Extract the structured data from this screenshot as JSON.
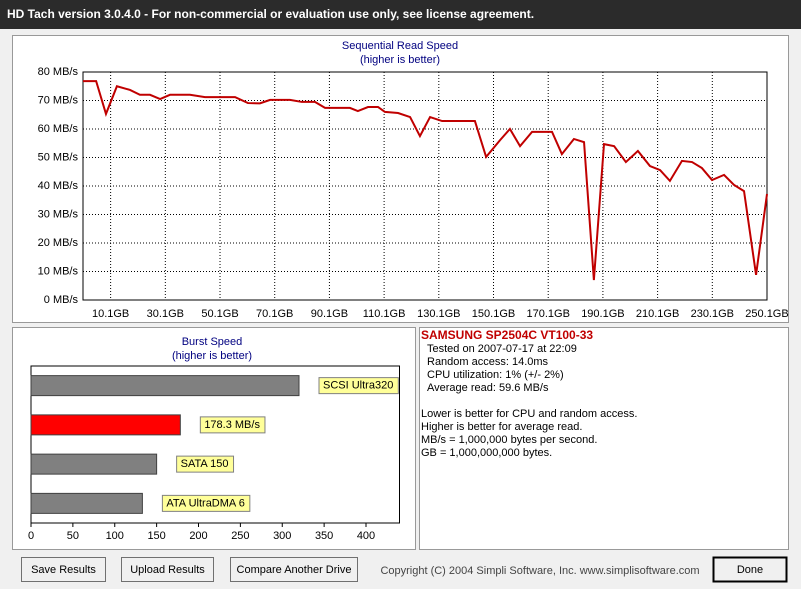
{
  "window_title": "HD Tach version 3.0.4.0  - For non-commercial or evaluation use only, see license agreement.",
  "chart_data": [
    {
      "type": "line",
      "title": "Sequential Read Speed",
      "subtitle": "(higher is better)",
      "color": "#c00000",
      "grid": true,
      "x": [
        0,
        4.8,
        8.4,
        12.4,
        17.2,
        20.8,
        24.5,
        28.2,
        31.8,
        39.1,
        44.6,
        55.6,
        60.3,
        64.7,
        68.4,
        75.7,
        80,
        84.8,
        88.5,
        97.6,
        100.5,
        104.2,
        107.9,
        110.4,
        115.2,
        119.6,
        123.2,
        126.9,
        131.3,
        143.3,
        147.4,
        152.5,
        156.1,
        159.8,
        164.2,
        171.5,
        175.1,
        179.5,
        183.2,
        186.8,
        190.5,
        194.2,
        198.5,
        202.9,
        207.3,
        211,
        214.6,
        219,
        222.7,
        226.3,
        230,
        234.4,
        238,
        241.7,
        246.1,
        250.1
      ],
      "values": [
        76.8,
        76.8,
        65.3,
        75,
        73.7,
        72,
        72,
        70.5,
        72,
        72,
        71.2,
        71.2,
        69.1,
        69,
        70.2,
        70.2,
        69.5,
        69.5,
        67.4,
        67.4,
        66.3,
        67.7,
        67.7,
        66,
        65.6,
        64.2,
        57.5,
        64.2,
        62.8,
        62.8,
        50.2,
        56.1,
        60,
        54,
        59,
        59,
        51.2,
        56.5,
        55.4,
        7,
        54.7,
        54,
        48.4,
        52.3,
        47,
        45.6,
        41.8,
        48.8,
        48.4,
        46.3,
        42.1,
        43.9,
        40.4,
        38.2,
        8.8,
        37.2
      ],
      "xlim": [
        0,
        250.1
      ],
      "xticks": [
        {
          "value": 10.1,
          "label": "10.1GB"
        },
        {
          "value": 30.1,
          "label": "30.1GB"
        },
        {
          "value": 50.1,
          "label": "50.1GB"
        },
        {
          "value": 70.1,
          "label": "70.1GB"
        },
        {
          "value": 90.1,
          "label": "90.1GB"
        },
        {
          "value": 110.1,
          "label": "110.1GB"
        },
        {
          "value": 130.1,
          "label": "130.1GB"
        },
        {
          "value": 150.1,
          "label": "150.1GB"
        },
        {
          "value": 170.1,
          "label": "170.1GB"
        },
        {
          "value": 190.1,
          "label": "190.1GB"
        },
        {
          "value": 210.1,
          "label": "210.1GB"
        },
        {
          "value": 230.1,
          "label": "230.1GB"
        },
        {
          "value": 250.1,
          "label": "250.1GB"
        }
      ],
      "ylim": [
        0,
        80
      ],
      "yticks": [
        {
          "value": 0,
          "label": "0 MB/s"
        },
        {
          "value": 10,
          "label": "10 MB/s"
        },
        {
          "value": 20,
          "label": "20 MB/s"
        },
        {
          "value": 30,
          "label": "30 MB/s"
        },
        {
          "value": 40,
          "label": "40 MB/s"
        },
        {
          "value": 50,
          "label": "50 MB/s"
        },
        {
          "value": 60,
          "label": "60 MB/s"
        },
        {
          "value": 70,
          "label": "70 MB/s"
        },
        {
          "value": 80,
          "label": "80 MB/s"
        }
      ]
    },
    {
      "type": "hbar",
      "title": "Burst Speed",
      "subtitle": "(higher is better)",
      "categories": [
        "SCSI Ultra320",
        null,
        "SATA 150",
        "ATA UltraDMA 6"
      ],
      "values": [
        320,
        178.3,
        150,
        133
      ],
      "value_labels": [
        null,
        "178.3 MB/s",
        null,
        null
      ],
      "colors": [
        "#808080",
        "#ff0000",
        "#808080",
        "#808080"
      ],
      "xlim": [
        0,
        440
      ],
      "xticks": [
        0,
        50,
        100,
        150,
        200,
        250,
        300,
        350,
        400
      ]
    }
  ],
  "drive": "SAMSUNG SP2504C VT100-33",
  "info": [
    "Tested on 2007-07-17 at 22:09",
    "Random access: 14.0ms",
    "CPU utilization: 1% (+/- 2%)",
    "Average read: 59.6 MB/s"
  ],
  "notes": [
    "Lower is better for CPU and random access.",
    "Higher is better for average read.",
    "MB/s = 1,000,000 bytes per second.",
    "GB = 1,000,000,000 bytes."
  ],
  "buttons": [
    "Save Results",
    "Upload Results",
    "Compare Another Drive"
  ],
  "copyright": "Copyright (C) 2004 Simpli Software, Inc. www.simplisoftware.com",
  "done": "Done"
}
